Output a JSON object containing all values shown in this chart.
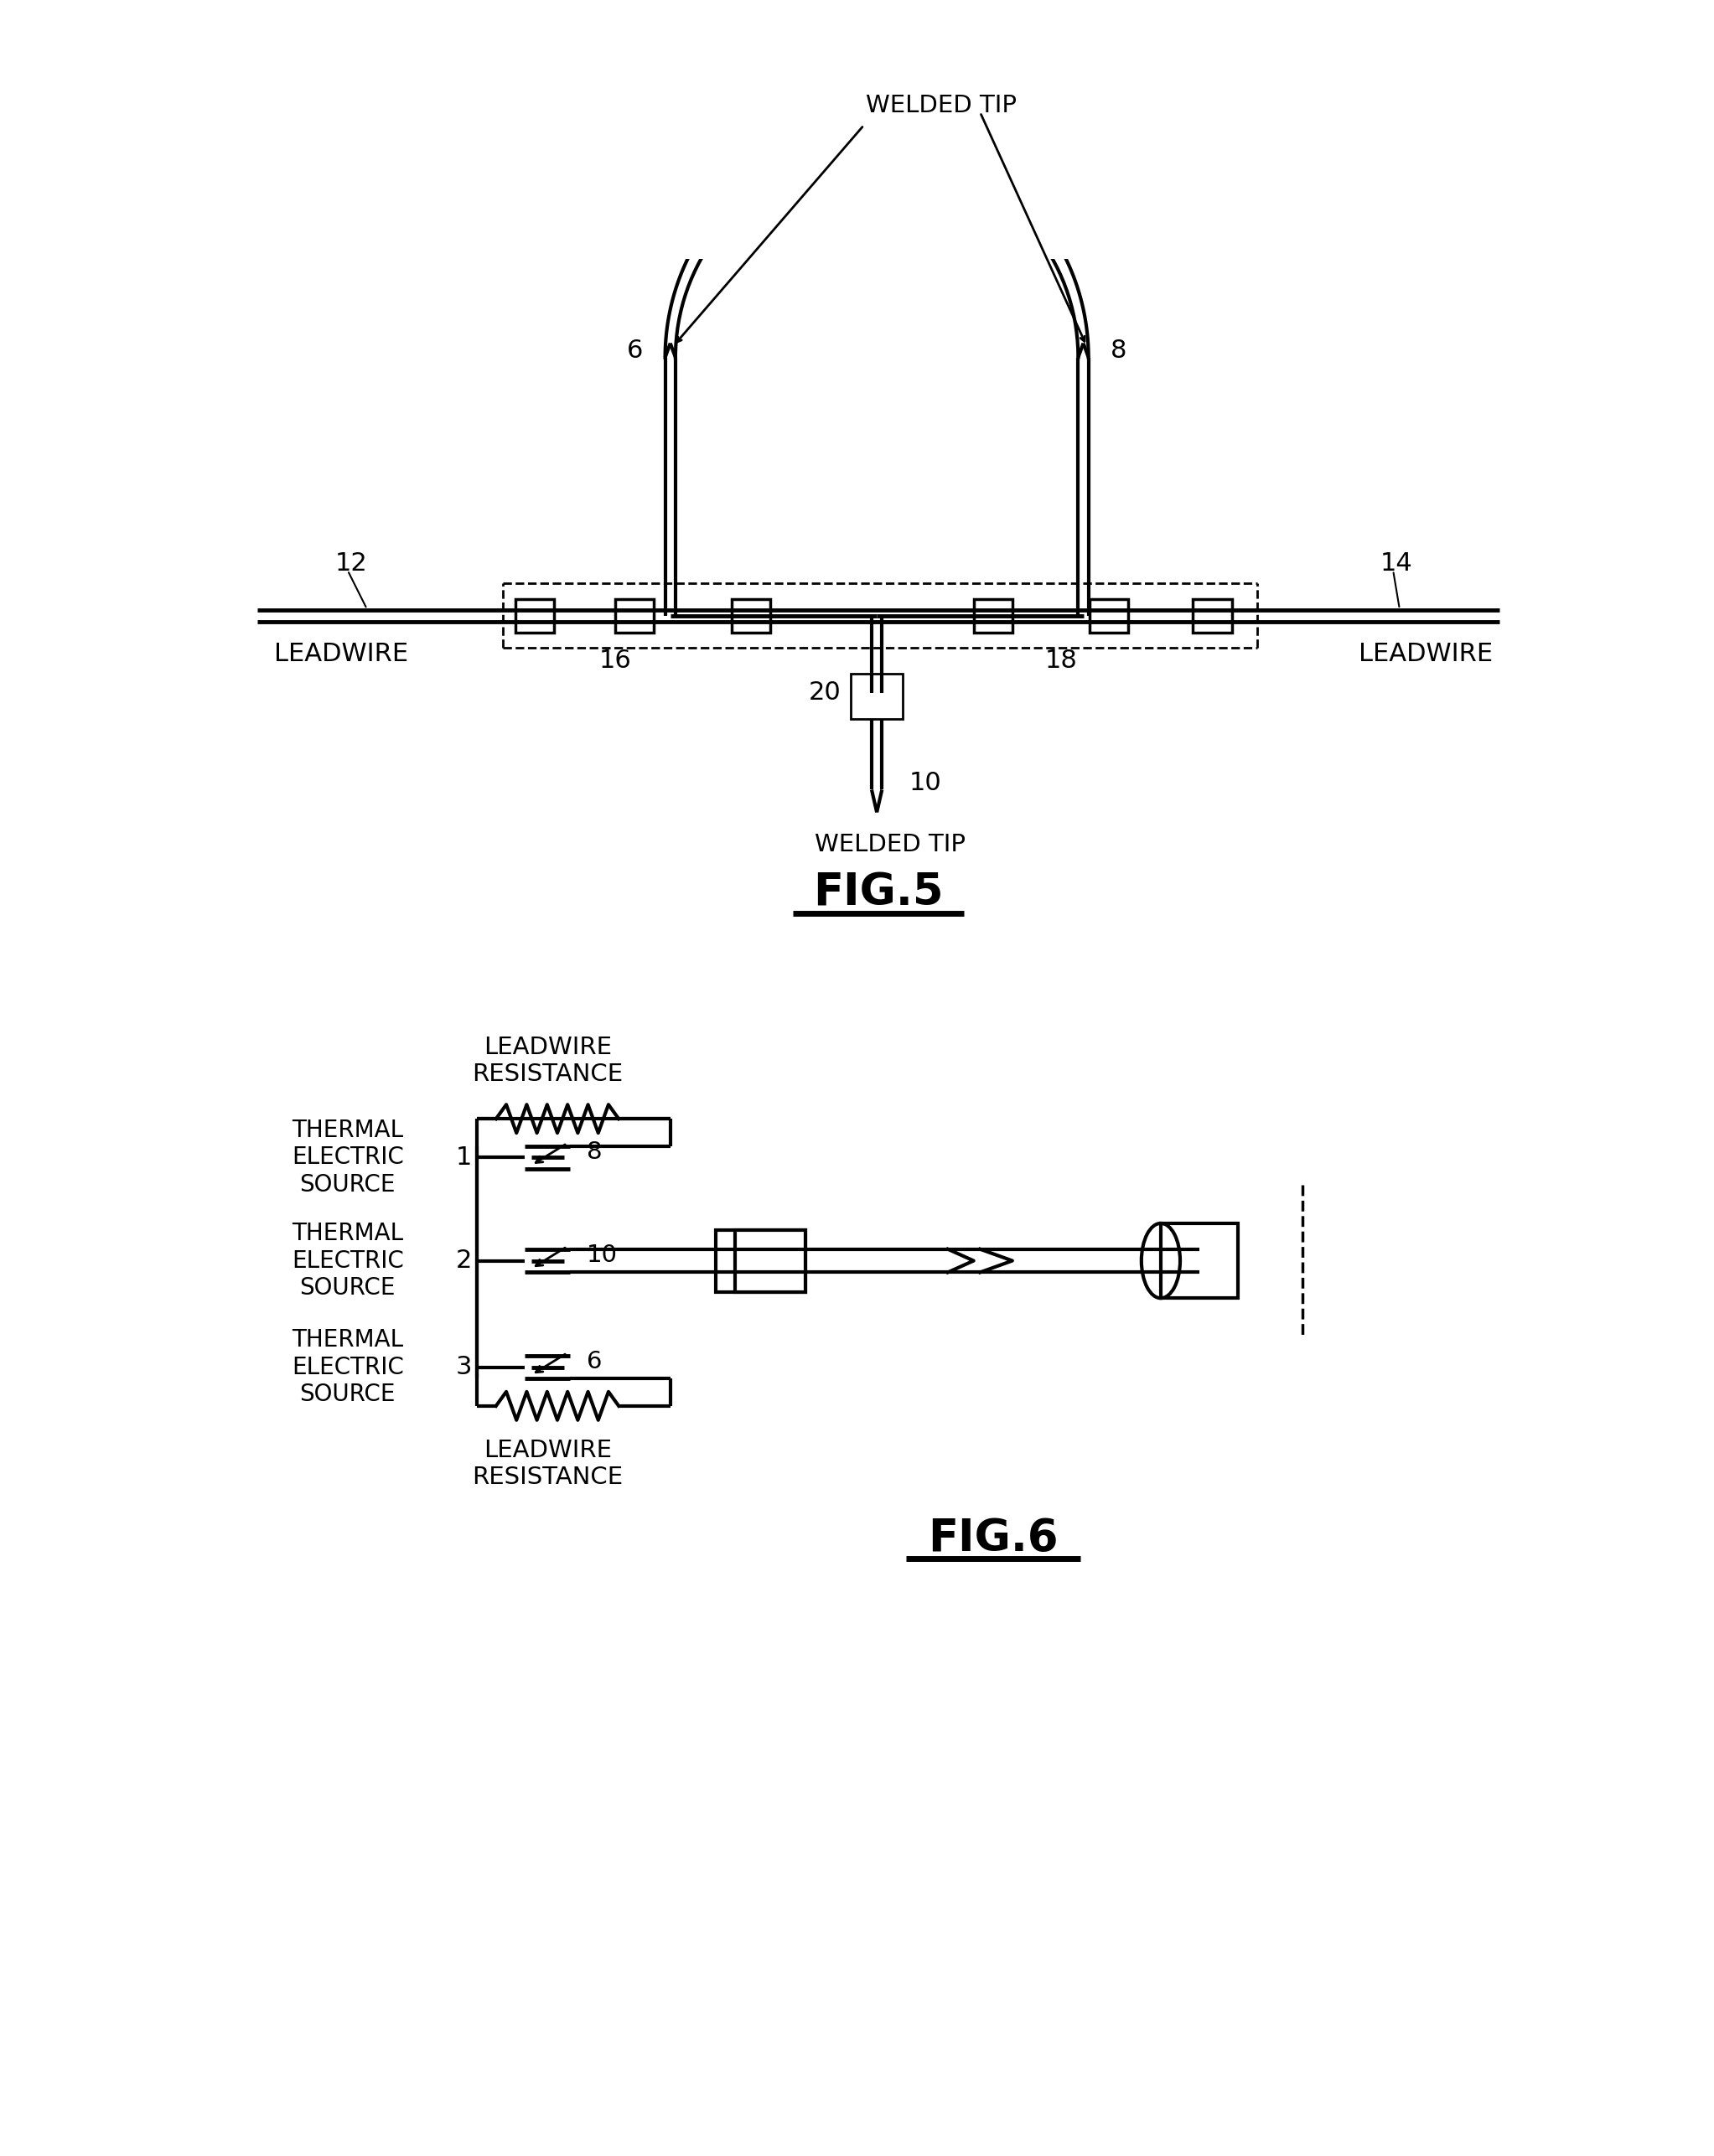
{
  "bg_color": "#ffffff",
  "line_color": "#000000",
  "fig5_title": "FIG.5",
  "fig6_title": "FIG.6",
  "fig5_labels": {
    "welded_tip_top": "WELDED TIP",
    "welded_tip_bot": "WELDED TIP",
    "leadwire_left": "LEADWIRE",
    "leadwire_right": "LEADWIRE",
    "num_6": "6",
    "num_8": "8",
    "num_10": "10",
    "num_12": "12",
    "num_14": "14",
    "num_16": "16",
    "num_18": "18",
    "num_20": "20"
  },
  "fig6_labels": {
    "leadwire_resistance_top": "LEADWIRE\nRESISTANCE",
    "leadwire_resistance_bottom": "LEADWIRE\nRESISTANCE",
    "thermal_src": "THERMAL\nELECTRIC\nSOURCE",
    "num_1": "1",
    "num_2": "2",
    "num_3": "3",
    "num_6": "6",
    "num_8": "8",
    "num_10": "10"
  }
}
